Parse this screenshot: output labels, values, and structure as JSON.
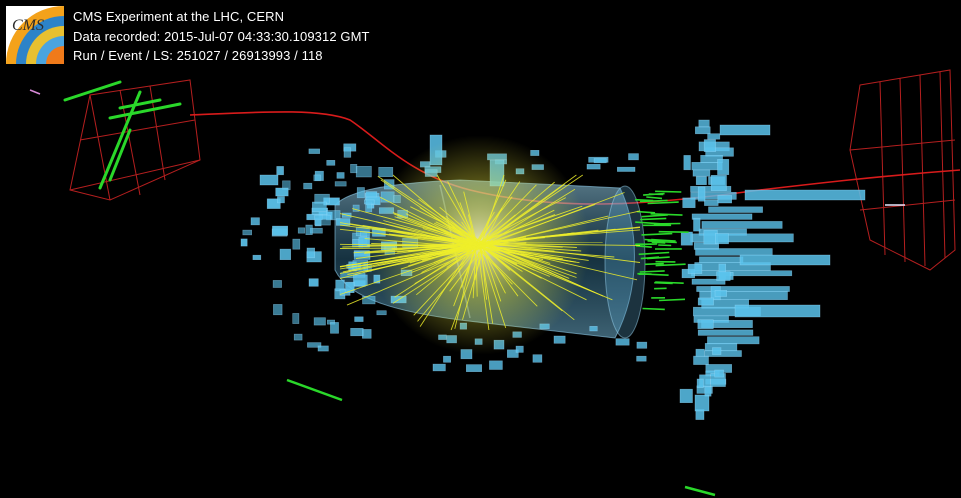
{
  "logo": {
    "icon": "cms-logo-icon",
    "text": "CMS"
  },
  "event": {
    "experiment": "CMS Experiment at the LHC, CERN",
    "recorded": "Data recorded: 2015-Jul-07 04:33:30.109312 GMT",
    "run": "Run / Event / LS: 251027 / 26913993 / 118"
  },
  "colors": {
    "background": "#000000",
    "calorimeter": "#5bc3ec",
    "tracks": "#f2f230",
    "muon_track": "#e01818",
    "muon_chamber": "#c02020",
    "hits": "#2edb2e",
    "detector_barrel": "#6ea9cc"
  }
}
